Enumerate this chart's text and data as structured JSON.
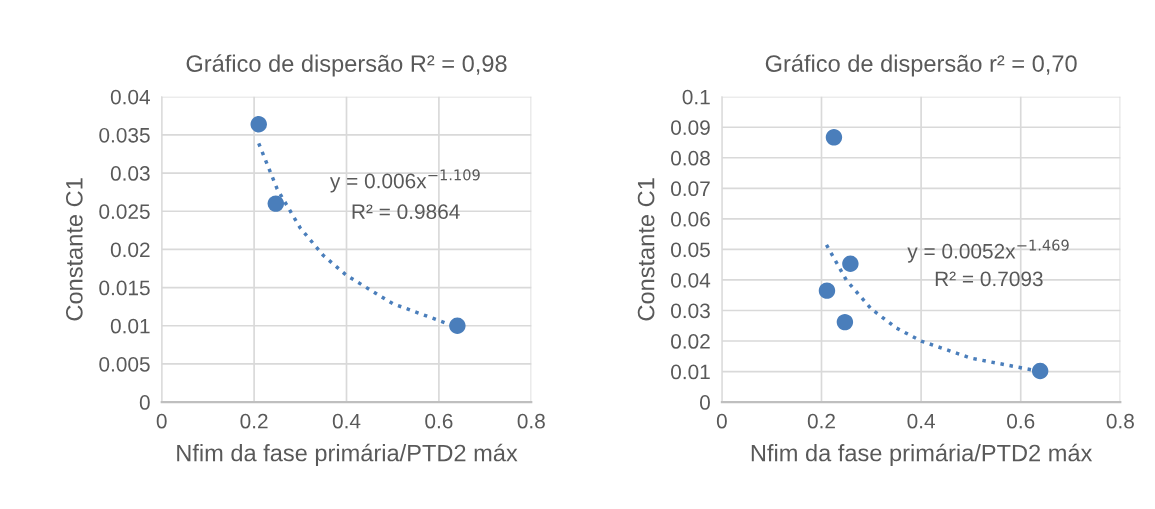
{
  "chart_data": [
    {
      "type": "scatter",
      "title": "Gráfico de dispersão R² = 0,98",
      "xlabel": "Nfim da fase primária/PTD2 máx",
      "ylabel": "Constante C1",
      "xlim": [
        0,
        0.8
      ],
      "xticks": [
        0,
        0.2,
        0.4,
        0.6,
        0.8
      ],
      "ylim": [
        0,
        0.04
      ],
      "yticks": [
        0,
        0.005,
        0.01,
        0.015,
        0.02,
        0.025,
        0.03,
        0.035,
        0.04
      ],
      "grid": true,
      "legend": false,
      "annotations": [
        "y = 0.006x$^{−1.109}$",
        "R² = 0.9864"
      ],
      "series": [
        {
          "color": "#4a7ebb",
          "marker": "circle",
          "x": [
            0.21,
            0.247,
            0.64
          ],
          "values": [
            0.0364,
            0.026,
            0.01
          ]
        },
        {
          "type": "line",
          "color": "#4a7ebb",
          "line_style": "dotted",
          "marker": "none",
          "x": [
            0.21,
            0.25,
            0.3,
            0.35,
            0.4,
            0.5,
            0.64
          ],
          "values": [
            0.0339,
            0.0279,
            0.0228,
            0.0192,
            0.0166,
            0.0129,
            0.0098
          ]
        }
      ]
    },
    {
      "type": "scatter",
      "title": "Gráfico de dispersão r² = 0,70",
      "xlabel": "Nfim da fase primária/PTD2 máx",
      "ylabel": "Constante C1",
      "xlim": [
        0,
        0.8
      ],
      "xticks": [
        0,
        0.2,
        0.4,
        0.6,
        0.8
      ],
      "ylim": [
        0,
        0.1
      ],
      "yticks": [
        0,
        0.01,
        0.02,
        0.03,
        0.04,
        0.05,
        0.06,
        0.07,
        0.08,
        0.09,
        0.1
      ],
      "grid": true,
      "legend": false,
      "annotations": [
        "y = 0.0052x$^{−1.469}$",
        "R² = 0.7093"
      ],
      "series": [
        {
          "color": "#4a7ebb",
          "marker": "circle",
          "x": [
            0.225,
            0.258,
            0.211,
            0.247,
            0.639
          ],
          "values": [
            0.0867,
            0.0453,
            0.0365,
            0.0262,
            0.0102
          ]
        },
        {
          "type": "line",
          "color": "#4a7ebb",
          "line_style": "dotted",
          "marker": "none",
          "x": [
            0.21,
            0.25,
            0.3,
            0.35,
            0.4,
            0.5,
            0.64
          ],
          "values": [
            0.0515,
            0.0399,
            0.0305,
            0.0243,
            0.02,
            0.0144,
            0.01
          ]
        }
      ]
    }
  ]
}
